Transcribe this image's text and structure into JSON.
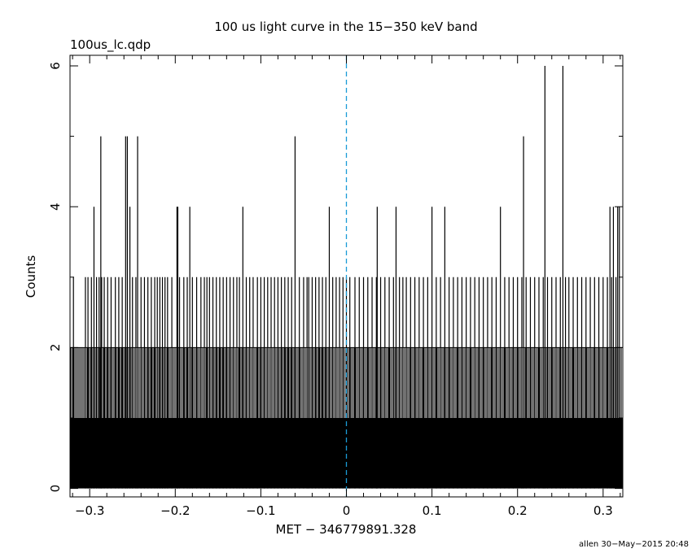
{
  "chart_data": {
    "type": "bar",
    "title": "100 us light curve in the 15−350 keV band",
    "subtitle": "100us_lc.qdp",
    "xlabel": "MET − 346779891.328",
    "ylabel": "Counts",
    "footer": "allen 30−May−2015 20:48",
    "xlim": [
      -0.323,
      0.323
    ],
    "ylim": [
      -0.12,
      6.15
    ],
    "xticks": [
      -0.3,
      -0.2,
      -0.1,
      0,
      0.1,
      0.2,
      0.3
    ],
    "xtick_labels": [
      "−0.3",
      "−0.2",
      "−0.1",
      "0",
      "0.1",
      "0.2",
      "0.3"
    ],
    "yticks": [
      0,
      2,
      4,
      6
    ],
    "ytick_labels": [
      "0",
      "2",
      "4",
      "6"
    ],
    "grid": false,
    "bin_width": 0.0001,
    "baseline_max": 2,
    "reference_line": {
      "x": 0,
      "color": "#1a9bd7",
      "style": "dashed"
    },
    "series": [
      {
        "description": "bins exceeding 2 counts (peaks)",
        "x": [
          -0.319,
          -0.305,
          -0.302,
          -0.298,
          -0.295,
          -0.292,
          -0.289,
          -0.287,
          -0.286,
          -0.283,
          -0.279,
          -0.275,
          -0.27,
          -0.266,
          -0.262,
          -0.258,
          -0.256,
          -0.253,
          -0.25,
          -0.246,
          -0.244,
          -0.24,
          -0.236,
          -0.232,
          -0.228,
          -0.224,
          -0.221,
          -0.218,
          -0.215,
          -0.212,
          -0.209,
          -0.204,
          -0.198,
          -0.197,
          -0.195,
          -0.19,
          -0.186,
          -0.183,
          -0.18,
          -0.175,
          -0.17,
          -0.166,
          -0.163,
          -0.16,
          -0.156,
          -0.152,
          -0.148,
          -0.144,
          -0.14,
          -0.136,
          -0.132,
          -0.128,
          -0.125,
          -0.121,
          -0.117,
          -0.113,
          -0.109,
          -0.104,
          -0.1,
          -0.096,
          -0.092,
          -0.088,
          -0.084,
          -0.08,
          -0.076,
          -0.072,
          -0.068,
          -0.064,
          -0.06,
          -0.055,
          -0.05,
          -0.046,
          -0.044,
          -0.04,
          -0.036,
          -0.032,
          -0.028,
          -0.024,
          -0.02,
          -0.016,
          -0.012,
          -0.008,
          -0.004,
          0.0,
          0.004,
          0.01,
          0.015,
          0.02,
          0.025,
          0.03,
          0.035,
          0.036,
          0.04,
          0.045,
          0.05,
          0.055,
          0.058,
          0.062,
          0.066,
          0.07,
          0.075,
          0.08,
          0.085,
          0.09,
          0.095,
          0.1,
          0.105,
          0.11,
          0.115,
          0.12,
          0.125,
          0.13,
          0.135,
          0.14,
          0.145,
          0.15,
          0.155,
          0.16,
          0.165,
          0.17,
          0.175,
          0.18,
          0.185,
          0.19,
          0.195,
          0.2,
          0.205,
          0.207,
          0.21,
          0.215,
          0.22,
          0.225,
          0.23,
          0.232,
          0.235,
          0.24,
          0.245,
          0.25,
          0.253,
          0.256,
          0.26,
          0.265,
          0.27,
          0.275,
          0.28,
          0.285,
          0.29,
          0.295,
          0.3,
          0.305,
          0.308,
          0.31,
          0.312,
          0.315,
          0.317,
          0.319
        ],
        "values": [
          3,
          3,
          3,
          3,
          4,
          3,
          3,
          5,
          3,
          3,
          3,
          3,
          3,
          3,
          3,
          5,
          5,
          4,
          3,
          3,
          5,
          3,
          3,
          3,
          3,
          3,
          3,
          3,
          3,
          3,
          3,
          3,
          4,
          4,
          3,
          3,
          3,
          4,
          3,
          3,
          3,
          3,
          3,
          3,
          3,
          3,
          3,
          3,
          3,
          3,
          3,
          3,
          3,
          4,
          3,
          3,
          3,
          3,
          3,
          3,
          3,
          3,
          3,
          3,
          3,
          3,
          3,
          3,
          5,
          3,
          3,
          3,
          3,
          3,
          3,
          3,
          3,
          3,
          4,
          3,
          3,
          3,
          3,
          3,
          3,
          3,
          3,
          3,
          3,
          3,
          3,
          4,
          3,
          3,
          3,
          3,
          4,
          3,
          3,
          3,
          3,
          3,
          3,
          3,
          3,
          4,
          3,
          3,
          4,
          3,
          3,
          3,
          3,
          3,
          3,
          3,
          3,
          3,
          3,
          3,
          3,
          4,
          3,
          3,
          3,
          3,
          3,
          5,
          3,
          3,
          3,
          3,
          3,
          6,
          3,
          3,
          3,
          3,
          6,
          3,
          3,
          3,
          3,
          3,
          3,
          3,
          3,
          3,
          3,
          3,
          4,
          3,
          4,
          3,
          4,
          4
        ]
      }
    ]
  },
  "colors": {
    "axes": "#000000",
    "bars": "#000000",
    "reference_line": "#1a9bd7",
    "background": "#ffffff"
  }
}
